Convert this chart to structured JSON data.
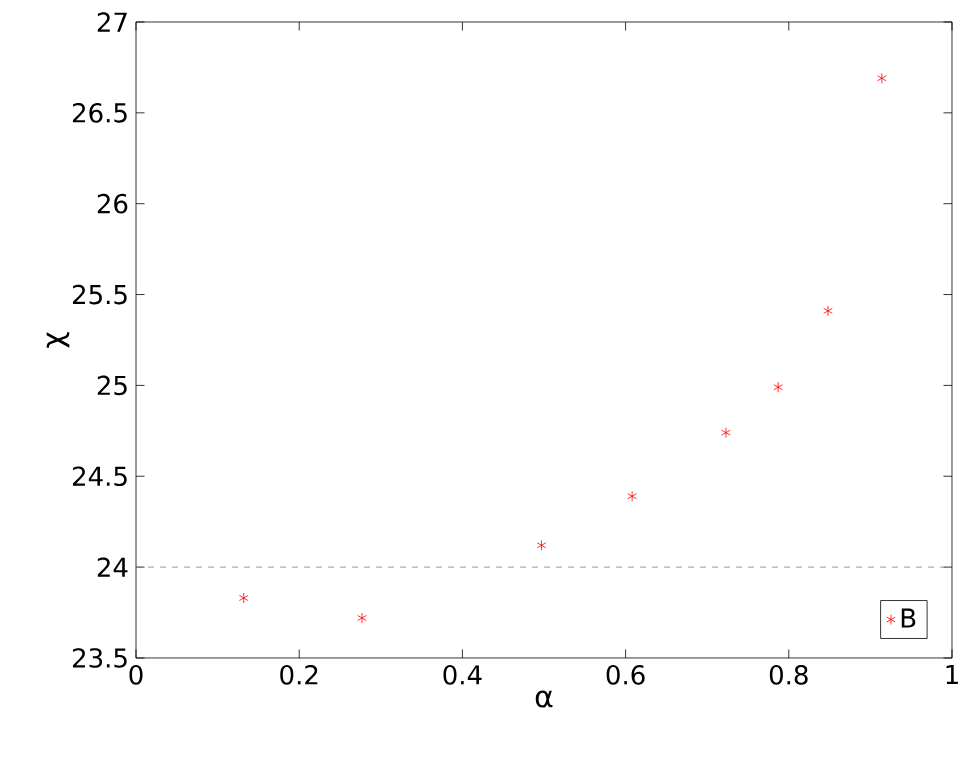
{
  "chart_data": {
    "type": "scatter",
    "xlabel": "α",
    "ylabel": "χ",
    "x": [
      0.132,
      0.277,
      0.497,
      0.608,
      0.723,
      0.787,
      0.848,
      0.914
    ],
    "series": [
      {
        "name": "B",
        "color": "#ff0000",
        "values": [
          23.83,
          23.72,
          24.12,
          24.39,
          24.74,
          24.99,
          25.41,
          26.69
        ]
      }
    ],
    "xlim": [
      0,
      1
    ],
    "ylim": [
      23.5,
      27
    ],
    "xticks": [
      0,
      0.2,
      0.4,
      0.6,
      0.8,
      1
    ],
    "yticks": [
      23.5,
      24,
      24.5,
      25,
      25.5,
      26,
      26.5,
      27
    ],
    "ref_lines": [
      {
        "axis": "y",
        "value": 24,
        "color": "#808080",
        "line_style": "dashed"
      }
    ],
    "legend": "bottom right",
    "marker": "cross",
    "grid": false
  }
}
